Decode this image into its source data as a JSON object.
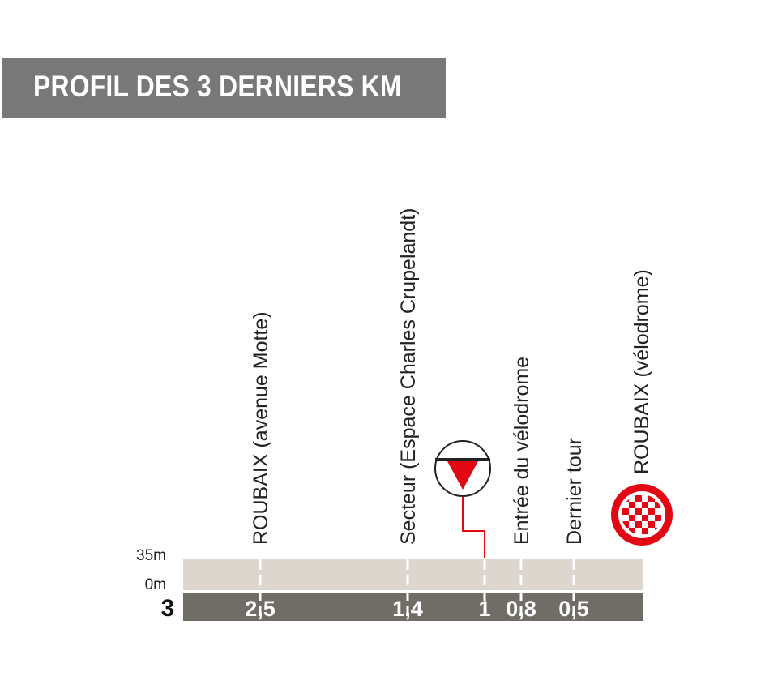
{
  "title": "PROFIL DES 3 DERNIERS KM",
  "altitude_labels": {
    "top": "35m",
    "bottom": "0m"
  },
  "km_start": "3",
  "markers": [
    {
      "km": 2.5,
      "km_label": "2,5",
      "text": "ROUBAIX (avenue Motte)"
    },
    {
      "km": 1.4,
      "km_label": "1,4",
      "text": "Secteur (Espace Charles Crupelandt)"
    },
    {
      "km": 1.0,
      "km_label": "1",
      "text": ""
    },
    {
      "km": 0.8,
      "km_label": "0,8",
      "text": "Entrée du vélodrome"
    },
    {
      "km": 0.5,
      "km_label": "0,5",
      "text": "Dernier tour"
    }
  ],
  "finish": {
    "text": "ROUBAIX (vélodrome)",
    "icon": "checkered-flag-icon"
  },
  "flamme_rouge": {
    "km": 1.0,
    "icon": "flamme-rouge-icon"
  },
  "colors": {
    "title_bg": "#787878",
    "profile_fill": "#dcd6cf",
    "km_bar": "#6f6d66",
    "flamme_red": "#e30613",
    "finish_red": "#e30613"
  }
}
